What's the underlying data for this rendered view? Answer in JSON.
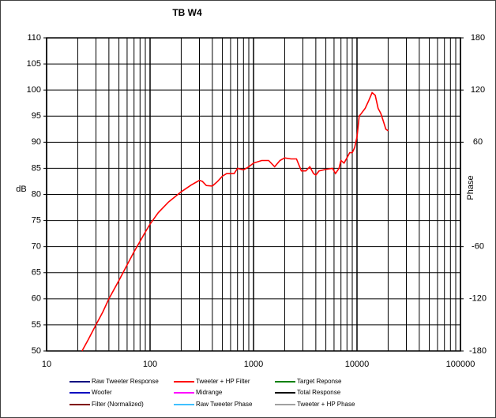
{
  "chart_data": {
    "type": "line",
    "title": "TB W4",
    "y_label": "dB",
    "y2_label": "Phase",
    "xlog": true,
    "grid": true,
    "minor_grid": true,
    "xlim": [
      10,
      100000
    ],
    "xticks": [
      10,
      100,
      1000,
      10000,
      100000
    ],
    "ylim": [
      50,
      110
    ],
    "yticks": [
      50,
      55,
      60,
      65,
      70,
      75,
      80,
      85,
      90,
      95,
      100,
      105,
      110
    ],
    "y2lim": [
      -180,
      180
    ],
    "y2ticks": [
      -180,
      -120,
      -60,
      60,
      120,
      180
    ],
    "series": [
      {
        "name": "Raw Tweeter Response",
        "color": "#000080"
      },
      {
        "name": "Tweeter + HP Filter",
        "color": "#ff0000",
        "x": [
          22,
          25,
          30,
          35,
          40,
          50,
          60,
          70,
          80,
          90,
          100,
          120,
          150,
          200,
          250,
          300,
          320,
          350,
          400,
          450,
          500,
          550,
          650,
          700,
          800,
          900,
          1000,
          1200,
          1400,
          1600,
          1800,
          2000,
          2300,
          2600,
          2900,
          3200,
          3500,
          3800,
          4000,
          4300,
          5000,
          5800,
          6200,
          6700,
          7000,
          7500,
          8000,
          8500,
          9000,
          9500,
          10000,
          10500,
          11000,
          12000,
          13000,
          14000,
          15000,
          16000,
          17000,
          18000,
          19000,
          20000
        ],
        "values": [
          50,
          52,
          55,
          57.5,
          60,
          63.5,
          66.5,
          69,
          71,
          72.8,
          74.3,
          76.5,
          78.5,
          80.5,
          81.8,
          82.7,
          82.5,
          81.7,
          81.6,
          82.5,
          83.5,
          84,
          84,
          85,
          84.7,
          85.3,
          86,
          86.5,
          86.5,
          85.3,
          86.5,
          87,
          86.8,
          86.8,
          84.5,
          84.5,
          85.3,
          84,
          83.7,
          84.5,
          84.8,
          85,
          84,
          85,
          86.5,
          86,
          87,
          88,
          88,
          89,
          91,
          95,
          95.5,
          96.5,
          98,
          99.5,
          99,
          96.5,
          95.5,
          94,
          92.5,
          92.2
        ]
      },
      {
        "name": "Target Reponse",
        "color": "#008000"
      },
      {
        "name": "Woofer",
        "color": "#0000c0"
      },
      {
        "name": "Midrange",
        "color": "#ff00ff"
      },
      {
        "name": "Total Response",
        "color": "#000000"
      },
      {
        "name": "Filter (Normalized)",
        "color": "#800000"
      },
      {
        "name": "Raw Tweeter Phase",
        "color": "#40c0ff"
      },
      {
        "name": "Tweeter + HP Phase",
        "color": "#a0a0a0"
      }
    ]
  }
}
